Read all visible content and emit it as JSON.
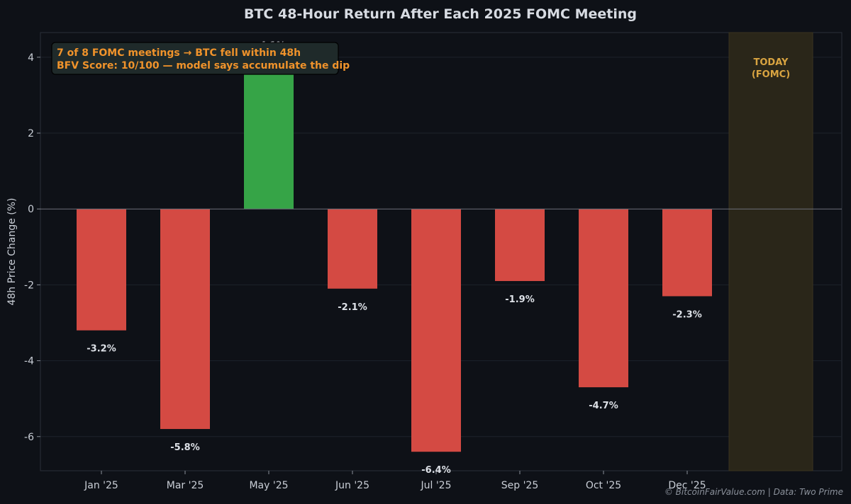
{
  "chart_data": {
    "type": "bar",
    "title": "BTC 48-Hour Return After Each 2025 FOMC Meeting",
    "xlabel": "",
    "ylabel": "48h Price Change (%)",
    "ylim": [
      -6.9,
      4.65
    ],
    "yticks": [
      -6,
      -4,
      -2,
      0,
      2,
      4
    ],
    "grid": true,
    "categories": [
      "Jan '25",
      "Mar '25",
      "May '25",
      "Jun '25",
      "Jul '25",
      "Sep '25",
      "Oct '25",
      "Dec '25"
    ],
    "values": [
      -3.2,
      -5.8,
      4.1,
      -2.1,
      -6.4,
      -1.9,
      -4.7,
      -2.3
    ],
    "data_labels": [
      "-3.2%",
      "-5.8%",
      "+4.1%",
      "-2.1%",
      "-6.4%",
      "-1.9%",
      "-4.7%",
      "-2.3%"
    ],
    "colors": {
      "positive": "#36a447",
      "negative": "#d44a43",
      "today_band": "#2a2619",
      "today_text": "#d9a441",
      "annotation": "#f0932b",
      "background": "#0e1117"
    },
    "highlight": {
      "label_line1": "TODAY",
      "label_line2": "(FOMC)"
    },
    "annotation": {
      "line1": "7 of 8 FOMC meetings → BTC fell within 48h",
      "line2": "BFV Score: 10/100 — model says accumulate the dip"
    },
    "credit": "© BitcoinFairValue.com  |  Data: Two Prime"
  }
}
